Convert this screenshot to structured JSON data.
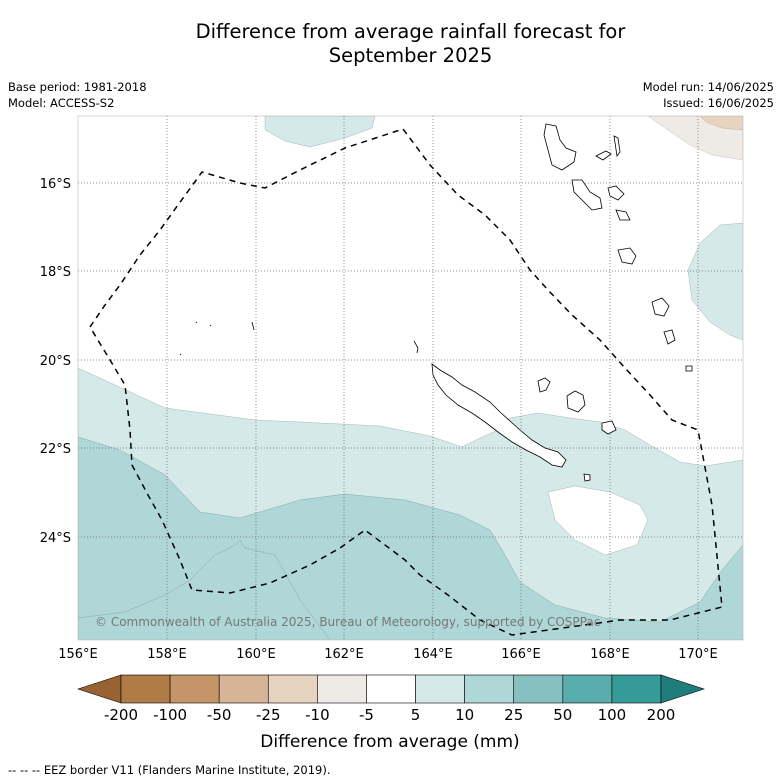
{
  "title_line1": "Difference from average rainfall forecast for",
  "title_line2": "September 2025",
  "base_period": "Base period: 1981-2018",
  "model": "Model: ACCESS-S2",
  "model_run": "Model run: 14/06/2025",
  "issued": "Issued: 16/06/2025",
  "copyright": "© Commonwealth of Australia 2025, Bureau of Meteorology, supported by COSPPac",
  "footnote": "--  --  -- EEZ border V11 (Flanders Marine Institute, 2019).",
  "lat_labels": [
    "16°S",
    "18°S",
    "20°S",
    "22°S",
    "24°S"
  ],
  "lon_labels": [
    "156°E",
    "158°E",
    "160°E",
    "162°E",
    "164°E",
    "166°E",
    "168°E",
    "170°E"
  ],
  "colorbar": {
    "title": "Difference from average (mm)",
    "tick_labels": [
      "-200",
      "-100",
      "-50",
      "-25",
      "-10",
      "-5",
      "5",
      "10",
      "25",
      "50",
      "100",
      "200"
    ],
    "colors": [
      "#996232",
      "#b07b46",
      "#c49568",
      "#d6b496",
      "#e6d3c0",
      "#eeebe7",
      "#ffffff",
      "#d5e9e8",
      "#afd7d7",
      "#87c0c0",
      "#5aadad",
      "#349b98",
      "#1f7e7c"
    ]
  },
  "legend_entry": "EEZ border V11 (Flanders Marine Institute, 2019)."
}
